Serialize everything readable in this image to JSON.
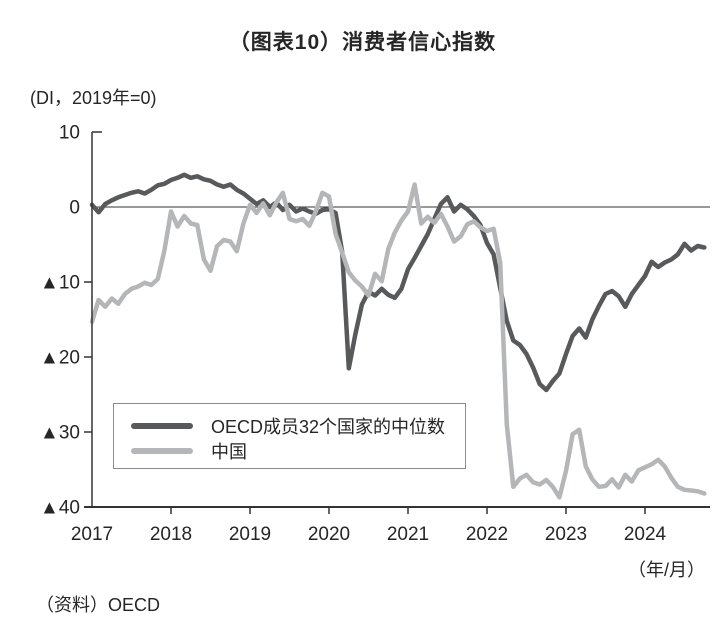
{
  "title": "（图表10）消费者信心指数",
  "y_axis": {
    "unit_label": "(DI，2019年=0)",
    "tick_labels": [
      "10",
      "0",
      "▲10",
      "▲20",
      "▲30",
      "▲40"
    ]
  },
  "x_axis": {
    "unit_label": "（年/月）",
    "tick_labels": [
      "2017",
      "2018",
      "2019",
      "2020",
      "2021",
      "2022",
      "2023",
      "2024"
    ]
  },
  "source": "（资料）OECD",
  "colors": {
    "oecd_line": "#58595b",
    "china_line": "#b5b6b8",
    "axis": "#333333",
    "text": "#262626"
  },
  "legend": {
    "items": [
      {
        "label": "OECD成员32个国家的中位数",
        "color": "#58595b"
      },
      {
        "label": "中国",
        "color": "#b5b6b8"
      }
    ]
  },
  "chart_data": {
    "type": "line",
    "title": "（图表10）消费者信心指数",
    "ylabel": "(DI，2019年=0)",
    "xlabel": "（年/月）",
    "x_start": "2017-01",
    "x_end": "2024-10",
    "x_frequency": "monthly",
    "x_tick_labels": [
      "2017",
      "2018",
      "2019",
      "2020",
      "2021",
      "2022",
      "2023",
      "2024"
    ],
    "ylim": [
      -40,
      10
    ],
    "y_ticks": [
      {
        "value": 10,
        "label": "10"
      },
      {
        "value": 0,
        "label": "0"
      },
      {
        "value": -10,
        "label": "▲10"
      },
      {
        "value": -20,
        "label": "▲20"
      },
      {
        "value": -30,
        "label": "▲30"
      },
      {
        "value": -40,
        "label": "▲40"
      }
    ],
    "negative_notation": "▲ marks negative values",
    "grid": false,
    "zero_line": true,
    "legend_position": "inside-bottom-left",
    "series": [
      {
        "name": "OECD成员32个国家的中位数",
        "color": "#58595b",
        "values": [
          0.3,
          -0.7,
          0.4,
          0.9,
          1.3,
          1.6,
          1.9,
          2.1,
          1.8,
          2.3,
          2.9,
          3.1,
          3.6,
          3.9,
          4.3,
          3.9,
          4.1,
          3.7,
          3.5,
          3.0,
          2.7,
          3.0,
          2.3,
          1.8,
          1.1,
          0.4,
          0.9,
          0.0,
          0.6,
          -0.4,
          0.3,
          -0.6,
          -0.2,
          -0.6,
          -0.9,
          -0.4,
          -0.3,
          -0.8,
          -6.0,
          -21.5,
          -17.0,
          -13.0,
          -11.3,
          -11.8,
          -10.9,
          -11.7,
          -12.1,
          -10.9,
          -8.3,
          -6.8,
          -5.2,
          -3.6,
          -1.6,
          0.4,
          1.3,
          -0.6,
          0.3,
          -0.3,
          -1.2,
          -2.4,
          -4.8,
          -6.3,
          -10.8,
          -15.2,
          -17.8,
          -18.4,
          -19.6,
          -21.4,
          -23.6,
          -24.4,
          -23.2,
          -22.2,
          -19.6,
          -17.2,
          -16.2,
          -17.4,
          -15.0,
          -13.2,
          -11.6,
          -11.2,
          -11.9,
          -13.3,
          -11.6,
          -10.4,
          -9.2,
          -7.3,
          -8.0,
          -7.4,
          -7.0,
          -6.3,
          -4.9,
          -5.8,
          -5.2,
          -5.4
        ]
      },
      {
        "name": "中国",
        "color": "#b5b6b8",
        "values": [
          -15.3,
          -12.4,
          -13.3,
          -12.2,
          -12.9,
          -11.6,
          -10.9,
          -10.6,
          -10.1,
          -10.4,
          -9.6,
          -5.8,
          -0.6,
          -2.6,
          -1.2,
          -2.2,
          -2.4,
          -7.0,
          -8.5,
          -5.2,
          -4.4,
          -4.6,
          -5.9,
          -2.2,
          0.3,
          -0.8,
          0.5,
          -1.1,
          0.6,
          1.9,
          -1.6,
          -1.9,
          -1.6,
          -2.5,
          -0.6,
          1.9,
          1.4,
          -3.6,
          -6.1,
          -8.7,
          -9.8,
          -10.6,
          -11.8,
          -8.9,
          -9.9,
          -5.6,
          -3.4,
          -1.8,
          -0.6,
          3.0,
          -2.2,
          -1.3,
          -2.1,
          -0.9,
          -2.6,
          -4.6,
          -3.9,
          -2.3,
          -1.9,
          -2.7,
          -3.2,
          -2.9,
          -7.4,
          -29.0,
          -37.3,
          -36.2,
          -35.7,
          -36.7,
          -37.0,
          -36.4,
          -37.3,
          -38.7,
          -35.2,
          -30.3,
          -29.7,
          -34.6,
          -36.3,
          -37.3,
          -37.2,
          -36.3,
          -37.4,
          -35.7,
          -36.6,
          -35.1,
          -34.7,
          -34.3,
          -33.7,
          -34.6,
          -36.1,
          -37.3,
          -37.7,
          -37.8,
          -37.9,
          -38.2
        ]
      }
    ]
  }
}
